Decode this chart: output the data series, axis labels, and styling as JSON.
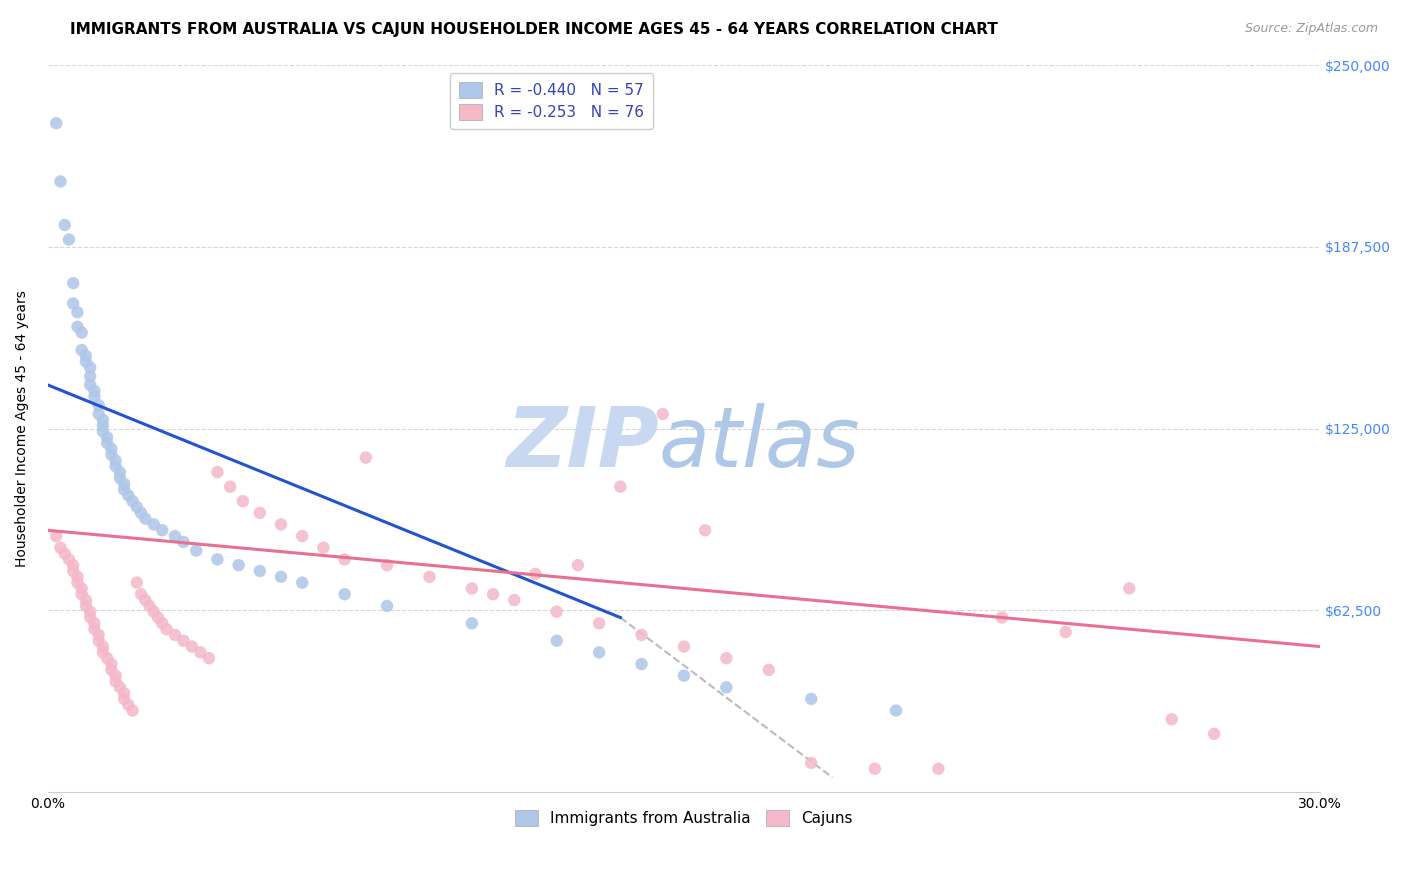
{
  "title": "IMMIGRANTS FROM AUSTRALIA VS CAJUN HOUSEHOLDER INCOME AGES 45 - 64 YEARS CORRELATION CHART",
  "source": "Source: ZipAtlas.com",
  "ylabel": "Householder Income Ages 45 - 64 years",
  "xlim": [
    0,
    0.3
  ],
  "ylim": [
    0,
    250000
  ],
  "ytick_labels": [
    "$250,000",
    "$187,500",
    "$125,000",
    "$62,500"
  ],
  "ytick_values": [
    250000,
    187500,
    125000,
    62500
  ],
  "legend_entries": [
    {
      "label": "R = -0.440   N = 57",
      "facecolor": "#aec6e8"
    },
    {
      "label": "R = -0.253   N = 76",
      "facecolor": "#f4b8c8"
    }
  ],
  "legend_text_color": "#3344bb",
  "blue_scatter_x": [
    0.002,
    0.003,
    0.004,
    0.005,
    0.006,
    0.006,
    0.007,
    0.007,
    0.008,
    0.008,
    0.009,
    0.009,
    0.01,
    0.01,
    0.01,
    0.011,
    0.011,
    0.012,
    0.012,
    0.013,
    0.013,
    0.013,
    0.014,
    0.014,
    0.015,
    0.015,
    0.016,
    0.016,
    0.017,
    0.017,
    0.018,
    0.018,
    0.019,
    0.02,
    0.021,
    0.022,
    0.023,
    0.025,
    0.027,
    0.03,
    0.032,
    0.035,
    0.04,
    0.045,
    0.05,
    0.055,
    0.06,
    0.07,
    0.08,
    0.1,
    0.12,
    0.13,
    0.14,
    0.15,
    0.16,
    0.18,
    0.2
  ],
  "blue_scatter_y": [
    230000,
    210000,
    195000,
    190000,
    175000,
    168000,
    165000,
    160000,
    158000,
    152000,
    150000,
    148000,
    146000,
    143000,
    140000,
    138000,
    136000,
    133000,
    130000,
    128000,
    126000,
    124000,
    122000,
    120000,
    118000,
    116000,
    114000,
    112000,
    110000,
    108000,
    106000,
    104000,
    102000,
    100000,
    98000,
    96000,
    94000,
    92000,
    90000,
    88000,
    86000,
    83000,
    80000,
    78000,
    76000,
    74000,
    72000,
    68000,
    64000,
    58000,
    52000,
    48000,
    44000,
    40000,
    36000,
    32000,
    28000
  ],
  "pink_scatter_x": [
    0.002,
    0.003,
    0.004,
    0.005,
    0.006,
    0.006,
    0.007,
    0.007,
    0.008,
    0.008,
    0.009,
    0.009,
    0.01,
    0.01,
    0.011,
    0.011,
    0.012,
    0.012,
    0.013,
    0.013,
    0.014,
    0.015,
    0.015,
    0.016,
    0.016,
    0.017,
    0.018,
    0.018,
    0.019,
    0.02,
    0.021,
    0.022,
    0.023,
    0.024,
    0.025,
    0.026,
    0.027,
    0.028,
    0.03,
    0.032,
    0.034,
    0.036,
    0.038,
    0.04,
    0.043,
    0.046,
    0.05,
    0.055,
    0.06,
    0.065,
    0.07,
    0.075,
    0.08,
    0.09,
    0.1,
    0.11,
    0.12,
    0.13,
    0.14,
    0.15,
    0.16,
    0.17,
    0.18,
    0.195,
    0.21,
    0.225,
    0.24,
    0.255,
    0.265,
    0.275,
    0.145,
    0.155,
    0.135,
    0.125,
    0.115,
    0.105
  ],
  "pink_scatter_y": [
    88000,
    84000,
    82000,
    80000,
    78000,
    76000,
    74000,
    72000,
    70000,
    68000,
    66000,
    64000,
    62000,
    60000,
    58000,
    56000,
    54000,
    52000,
    50000,
    48000,
    46000,
    44000,
    42000,
    40000,
    38000,
    36000,
    34000,
    32000,
    30000,
    28000,
    72000,
    68000,
    66000,
    64000,
    62000,
    60000,
    58000,
    56000,
    54000,
    52000,
    50000,
    48000,
    46000,
    110000,
    105000,
    100000,
    96000,
    92000,
    88000,
    84000,
    80000,
    115000,
    78000,
    74000,
    70000,
    66000,
    62000,
    58000,
    54000,
    50000,
    46000,
    42000,
    10000,
    8000,
    8000,
    60000,
    55000,
    70000,
    25000,
    20000,
    130000,
    90000,
    105000,
    78000,
    75000,
    68000
  ],
  "blue_line_x": [
    0.0,
    0.135
  ],
  "blue_line_y": [
    140000,
    60000
  ],
  "pink_line_x": [
    0.0,
    0.3
  ],
  "pink_line_y": [
    90000,
    50000
  ],
  "dashed_line_x": [
    0.135,
    0.185
  ],
  "dashed_line_y": [
    60000,
    5000
  ],
  "blue_scatter_color": "#aec6e8",
  "pink_scatter_color": "#f4b8c8",
  "blue_line_color": "#2255cc",
  "pink_line_color": "#e87090",
  "dashed_line_color": "#bbbbbb",
  "background_color": "#ffffff",
  "grid_color": "#cccccc",
  "title_fontsize": 11,
  "axis_label_fontsize": 10,
  "tick_label_fontsize": 10,
  "watermark_zip": "ZIP",
  "watermark_atlas": "atlas",
  "watermark_color": "#ccd8ee",
  "right_ytick_color": "#4488ff"
}
